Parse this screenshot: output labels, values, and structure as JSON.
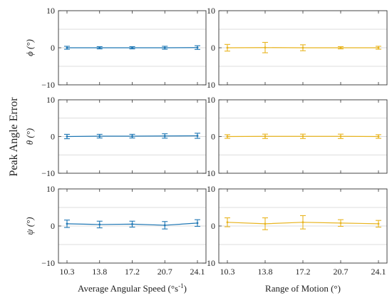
{
  "figure": {
    "ylabel": "Peak Angle Error",
    "columns": [
      {
        "xlabel_main": "Average Angular Speed (°s",
        "xlabel_sup": "-1",
        "xlabel_tail": ")"
      },
      {
        "xlabel_main": "Range of Motion (°)",
        "xlabel_sup": "",
        "xlabel_tail": ""
      }
    ],
    "row_labels": [
      "ϕ (°)",
      "θ (°)",
      "ψ (°)"
    ]
  },
  "colors": {
    "speed": "#1f77b4",
    "range": "#e8b41f",
    "grid": "#d0d0d0",
    "axis": "#333333"
  },
  "chart_data": [
    {
      "type": "line",
      "panel": "phi-speed",
      "ylabel": "ϕ (°)",
      "xlabel": "",
      "ylim": [
        -10,
        10
      ],
      "yticks": [
        -10,
        0,
        10
      ],
      "grid": true,
      "categories": [
        "10.3",
        "13.8",
        "17.2",
        "20.7",
        "24.1"
      ],
      "series": [
        {
          "values": [
            0.0,
            0.0,
            0.0,
            0.0,
            0.05
          ],
          "error": [
            0.4,
            0.3,
            0.3,
            0.4,
            0.5
          ]
        }
      ]
    },
    {
      "type": "line",
      "panel": "phi-range",
      "ylabel": "",
      "xlabel": "",
      "ylim": [
        -10,
        10
      ],
      "yticks": [
        -10,
        0,
        10
      ],
      "grid": true,
      "categories": [
        "10.3",
        "13.8",
        "17.2",
        "20.7",
        "24.1"
      ],
      "series": [
        {
          "values": [
            0.0,
            0.05,
            0.0,
            0.0,
            0.0
          ],
          "error": [
            0.9,
            1.4,
            0.8,
            0.3,
            0.4
          ]
        }
      ]
    },
    {
      "type": "line",
      "panel": "theta-speed",
      "ylabel": "θ (°)",
      "xlabel": "",
      "ylim": [
        -10,
        10
      ],
      "yticks": [
        -10,
        0,
        10
      ],
      "grid": true,
      "categories": [
        "10.3",
        "13.8",
        "17.2",
        "20.7",
        "24.1"
      ],
      "series": [
        {
          "values": [
            0.0,
            0.1,
            0.1,
            0.15,
            0.2
          ],
          "error": [
            0.6,
            0.5,
            0.5,
            0.6,
            0.7
          ]
        }
      ]
    },
    {
      "type": "line",
      "panel": "theta-range",
      "ylabel": "",
      "xlabel": "",
      "ylim": [
        -10,
        10
      ],
      "yticks": [
        -10,
        0,
        10
      ],
      "grid": true,
      "categories": [
        "10.3",
        "13.8",
        "17.2",
        "20.7",
        "24.1"
      ],
      "series": [
        {
          "values": [
            0.0,
            0.05,
            0.05,
            0.05,
            0.0
          ],
          "error": [
            0.5,
            0.6,
            0.6,
            0.6,
            0.5
          ]
        }
      ]
    },
    {
      "type": "line",
      "panel": "psi-speed",
      "ylabel": "ψ (°)",
      "xlabel": "Average Angular Speed (°s-1)",
      "ylim": [
        -10,
        10
      ],
      "yticks": [
        -10,
        0,
        10
      ],
      "grid": true,
      "categories": [
        "10.3",
        "13.8",
        "17.2",
        "20.7",
        "24.1"
      ],
      "series": [
        {
          "values": [
            0.6,
            0.4,
            0.5,
            0.2,
            0.8
          ],
          "error": [
            1.0,
            0.9,
            0.8,
            1.0,
            0.9
          ]
        }
      ]
    },
    {
      "type": "line",
      "panel": "psi-range",
      "ylabel": "",
      "xlabel": "Range of Motion (°)",
      "ylim": [
        -10,
        10
      ],
      "yticks": [
        -10,
        0,
        10
      ],
      "grid": true,
      "categories": [
        "10.3",
        "13.8",
        "17.2",
        "20.7",
        "24.1"
      ],
      "series": [
        {
          "values": [
            1.0,
            0.6,
            1.0,
            0.8,
            0.6
          ],
          "error": [
            1.2,
            1.6,
            1.8,
            0.9,
            0.9
          ]
        }
      ]
    }
  ]
}
